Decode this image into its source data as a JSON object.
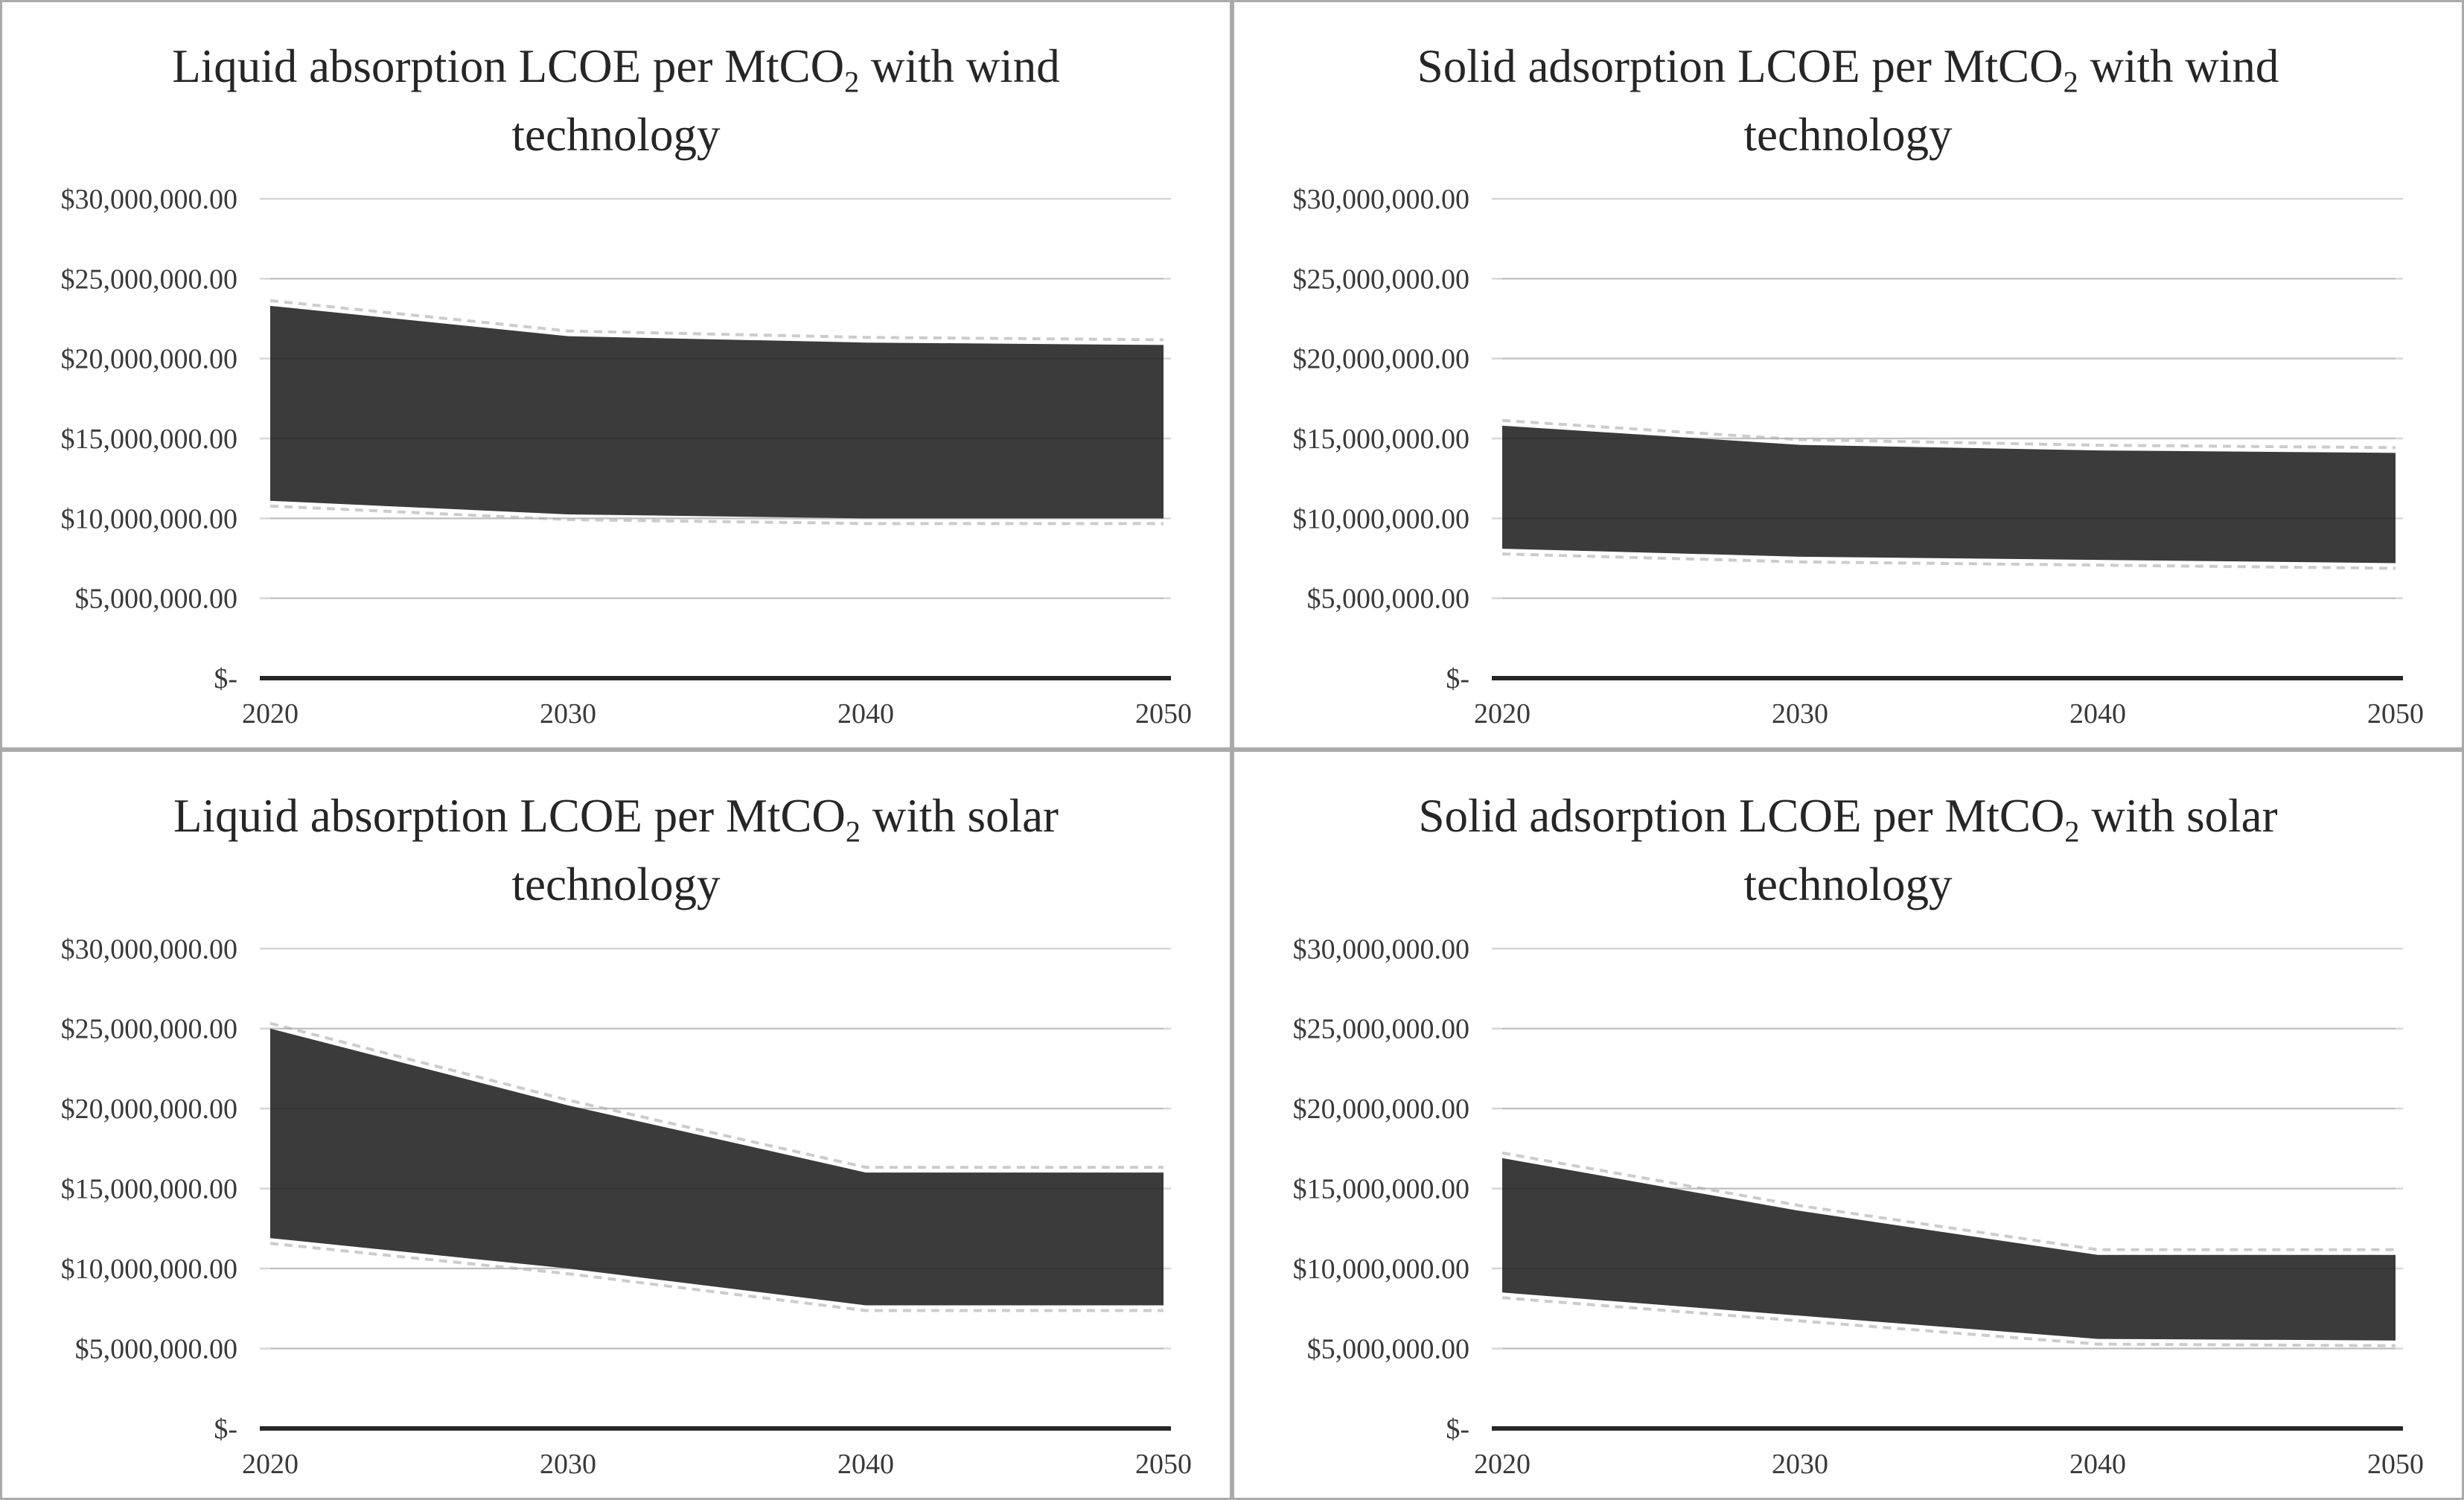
{
  "colors": {
    "band": "#3b3b3b",
    "gridline": "#d6d6d6",
    "gridline_overlay": "#000000",
    "axis_line": "#262626",
    "tick_text": "#3a3a3a",
    "title_text": "#262626",
    "panel_border": "#aaaaaa",
    "edge_halo": "#c6c6c6",
    "background": "#ffffff"
  },
  "axis_shared": {
    "x_labels": [
      "2020",
      "2030",
      "2040",
      "2050"
    ],
    "y_tick_labels": [
      "$30,000,000.00",
      "$25,000,000.00",
      "$20,000,000.00",
      "$15,000,000.00",
      "$10,000,000.00",
      "$5,000,000.00",
      "$-"
    ],
    "y_min": 0,
    "y_max": 30000000,
    "y_step": 5000000
  },
  "chart_data": [
    {
      "type": "area",
      "title_pre": "Liquid absorption LCOE per MtCO",
      "title_sub": "2",
      "title_post": " with wind technology",
      "x": [
        2020,
        2030,
        2040,
        2050
      ],
      "x_labels": [
        "2020",
        "2030",
        "2040",
        "2050"
      ],
      "y_tick_labels": [
        "$30,000,000.00",
        "$25,000,000.00",
        "$20,000,000.00",
        "$15,000,000.00",
        "$10,000,000.00",
        "$5,000,000.00",
        "$-"
      ],
      "ylim": [
        0,
        30000000
      ],
      "y_step": 5000000,
      "grid": "horizontal",
      "legend": "none",
      "band_fill": "#3b3b3b",
      "series": [
        {
          "name": "upper bound",
          "values": [
            23300000,
            21400000,
            21000000,
            20850000
          ]
        },
        {
          "name": "lower bound",
          "values": [
            11100000,
            10250000,
            10000000,
            10000000
          ]
        }
      ]
    },
    {
      "type": "area",
      "title_pre": "Solid adsorption LCOE per MtCO",
      "title_sub": "2",
      "title_post": " with wind technology",
      "x": [
        2020,
        2030,
        2040,
        2050
      ],
      "x_labels": [
        "2020",
        "2030",
        "2040",
        "2050"
      ],
      "y_tick_labels": [
        "$30,000,000.00",
        "$25,000,000.00",
        "$20,000,000.00",
        "$15,000,000.00",
        "$10,000,000.00",
        "$5,000,000.00",
        "$-"
      ],
      "ylim": [
        0,
        30000000
      ],
      "y_step": 5000000,
      "grid": "horizontal",
      "legend": "none",
      "band_fill": "#3b3b3b",
      "series": [
        {
          "name": "upper bound",
          "values": [
            15800000,
            14600000,
            14250000,
            14100000
          ]
        },
        {
          "name": "lower bound",
          "values": [
            8100000,
            7600000,
            7400000,
            7200000
          ]
        }
      ]
    },
    {
      "type": "area",
      "title_pre": "Liquid absorption LCOE per MtCO",
      "title_sub": "2",
      "title_post": " with solar technology",
      "x": [
        2020,
        2030,
        2040,
        2050
      ],
      "x_labels": [
        "2020",
        "2030",
        "2040",
        "2050"
      ],
      "y_tick_labels": [
        "$30,000,000.00",
        "$25,000,000.00",
        "$20,000,000.00",
        "$15,000,000.00",
        "$10,000,000.00",
        "$5,000,000.00",
        "$-"
      ],
      "ylim": [
        0,
        30000000
      ],
      "y_step": 5000000,
      "grid": "horizontal",
      "legend": "none",
      "band_fill": "#3b3b3b",
      "series": [
        {
          "name": "upper bound",
          "values": [
            25000000,
            20200000,
            16000000,
            16000000
          ]
        },
        {
          "name": "lower bound",
          "values": [
            11900000,
            10000000,
            7700000,
            7700000
          ]
        }
      ]
    },
    {
      "type": "area",
      "title_pre": "Solid adsorption LCOE per MtCO",
      "title_sub": "2",
      "title_post": " with solar technology",
      "x": [
        2020,
        2030,
        2040,
        2050
      ],
      "x_labels": [
        "2020",
        "2030",
        "2040",
        "2050"
      ],
      "y_tick_labels": [
        "$30,000,000.00",
        "$25,000,000.00",
        "$20,000,000.00",
        "$15,000,000.00",
        "$10,000,000.00",
        "$5,000,000.00",
        "$-"
      ],
      "ylim": [
        0,
        30000000
      ],
      "y_step": 5000000,
      "grid": "horizontal",
      "legend": "none",
      "band_fill": "#3b3b3b",
      "series": [
        {
          "name": "upper bound",
          "values": [
            16900000,
            13600000,
            10850000,
            10850000
          ]
        },
        {
          "name": "lower bound",
          "values": [
            8500000,
            7050000,
            5600000,
            5500000
          ]
        }
      ]
    }
  ]
}
